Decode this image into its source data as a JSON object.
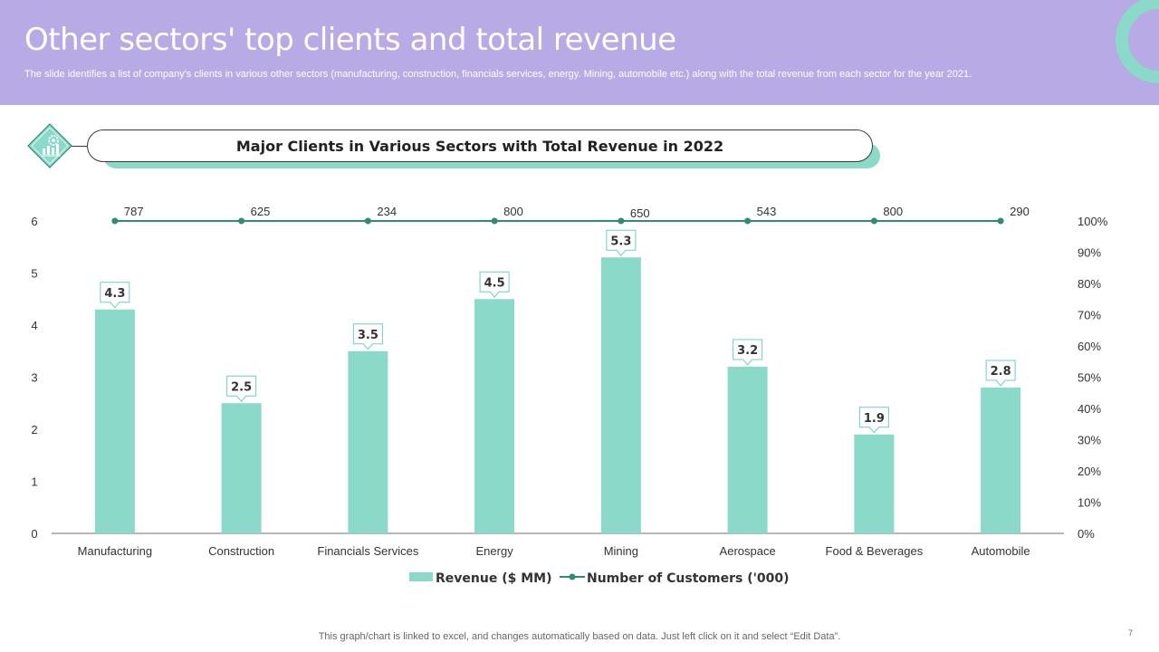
{
  "header": {
    "title": "Other sectors' top clients and total revenue",
    "subtitle": "The slide identifies a list of company's clients in various other sectors (manufacturing, construction, financials services, energy. Mining, automobile etc.) along with the total revenue from each sector for the year 2021."
  },
  "banner": {
    "title": "Major Clients in Various Sectors with Total Revenue in 2022",
    "icon": "gear-bar-chart-icon"
  },
  "colors": {
    "header_bg": "#b8aae4",
    "accent": "#8ad9c9",
    "line": "#2f8a78",
    "text": "#333333"
  },
  "chart_data": {
    "type": "bar",
    "title": "Major Clients in Various Sectors with Total Revenue in 2022",
    "categories": [
      "Manufacturing",
      "Construction",
      "Financials Services",
      "Energy",
      "Mining",
      "Aerospace",
      "Food & Beverages",
      "Automobile"
    ],
    "series": [
      {
        "name": "Revenue ($ MM)",
        "type": "bar",
        "axis": "left",
        "values": [
          4.3,
          2.5,
          3.5,
          4.5,
          5.3,
          3.2,
          1.9,
          2.8
        ]
      },
      {
        "name": "Number of Customers ('000)",
        "type": "line",
        "axis": "right",
        "values": [
          787,
          625,
          234,
          800,
          650,
          543,
          800,
          290
        ],
        "plotted_at_percent": 100
      }
    ],
    "ylim": [
      0,
      6
    ],
    "yticks": [
      "0",
      "1",
      "2",
      "3",
      "4",
      "5",
      "6"
    ],
    "y2ticks": [
      "0%",
      "10%",
      "20%",
      "30%",
      "40%",
      "50%",
      "60%",
      "70%",
      "80%",
      "90%",
      "100%"
    ],
    "grid": false,
    "legend_position": "bottom"
  },
  "footer": {
    "note": "This graph/chart is linked to excel, and changes automatically based on data. Just left click on it and select “Edit Data”.",
    "page_number": "7"
  }
}
